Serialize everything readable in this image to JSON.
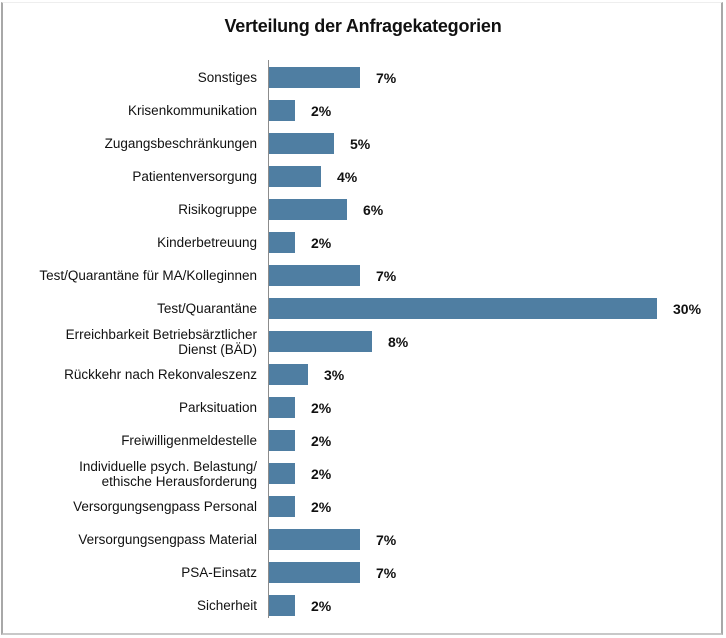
{
  "chart_data": {
    "type": "bar",
    "orientation": "horizontal",
    "title": "Verteilung der Anfragekategorien",
    "xlabel": "",
    "ylabel": "",
    "unit": "%",
    "grid": false,
    "legend": null,
    "xlim": [
      0,
      30
    ],
    "bar_color": "#4f7ea2",
    "categories": [
      "Sonstiges",
      "Krisenkommunikation",
      "Zugangsbeschränkungen",
      "Patientenversorgung",
      "Risikogruppe",
      "Kinderbetreuung",
      "Test/Quarantäne für MA/Kolleginnen",
      "Test/Quarantäne",
      "Erreichbarkeit Betriebsärztlicher \nDienst (BÄD)",
      "Rückkehr nach Rekonvaleszenz",
      "Parksituation",
      "Freiwilligenmeldestelle",
      "Individuelle psych. Belastung/\nethische Herausforderung",
      "Versorgungsengpass Personal",
      "Versorgungsengpass Material",
      "PSA-Einsatz",
      "Sicherheit"
    ],
    "values": [
      7,
      2,
      5,
      4,
      6,
      2,
      7,
      30,
      8,
      3,
      2,
      2,
      2,
      2,
      7,
      7,
      2
    ],
    "value_labels": [
      "7%",
      "2%",
      "5%",
      "4%",
      "6%",
      "2%",
      "7%",
      "30%",
      "8%",
      "3%",
      "2%",
      "2%",
      "2%",
      "2%",
      "7%",
      "7%",
      "2%"
    ]
  }
}
